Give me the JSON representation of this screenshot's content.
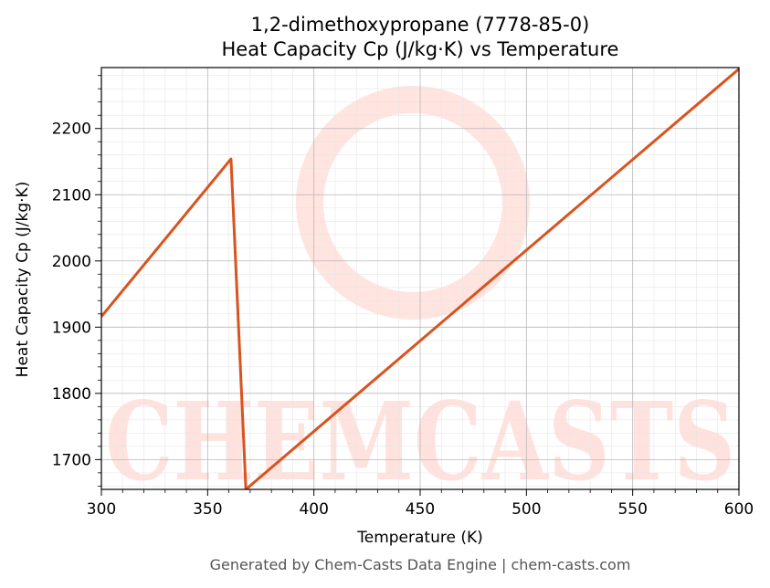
{
  "chart_data": {
    "type": "line",
    "title_line1": "1,2-dimethoxypropane (7778-85-0)",
    "title_line2": "Heat Capacity Cp (J/kg·K) vs Temperature",
    "xlabel": "Temperature (K)",
    "ylabel": "Heat Capacity Cp (J/kg·K)",
    "xlim": [
      300,
      600
    ],
    "ylim": [
      1655,
      2292
    ],
    "x_ticks": [
      300,
      350,
      400,
      450,
      500,
      550,
      600
    ],
    "y_ticks": [
      1700,
      1800,
      1900,
      2000,
      2100,
      2200
    ],
    "grid": true,
    "line_color": "#d9531e",
    "series": [
      {
        "x": [
          300,
          361,
          368,
          600
        ],
        "values": [
          1916,
          2154,
          1655,
          2290
        ]
      }
    ],
    "watermark": "CHEMCASTS",
    "footer": "Generated by Chem-Casts Data Engine | chem-casts.com"
  }
}
